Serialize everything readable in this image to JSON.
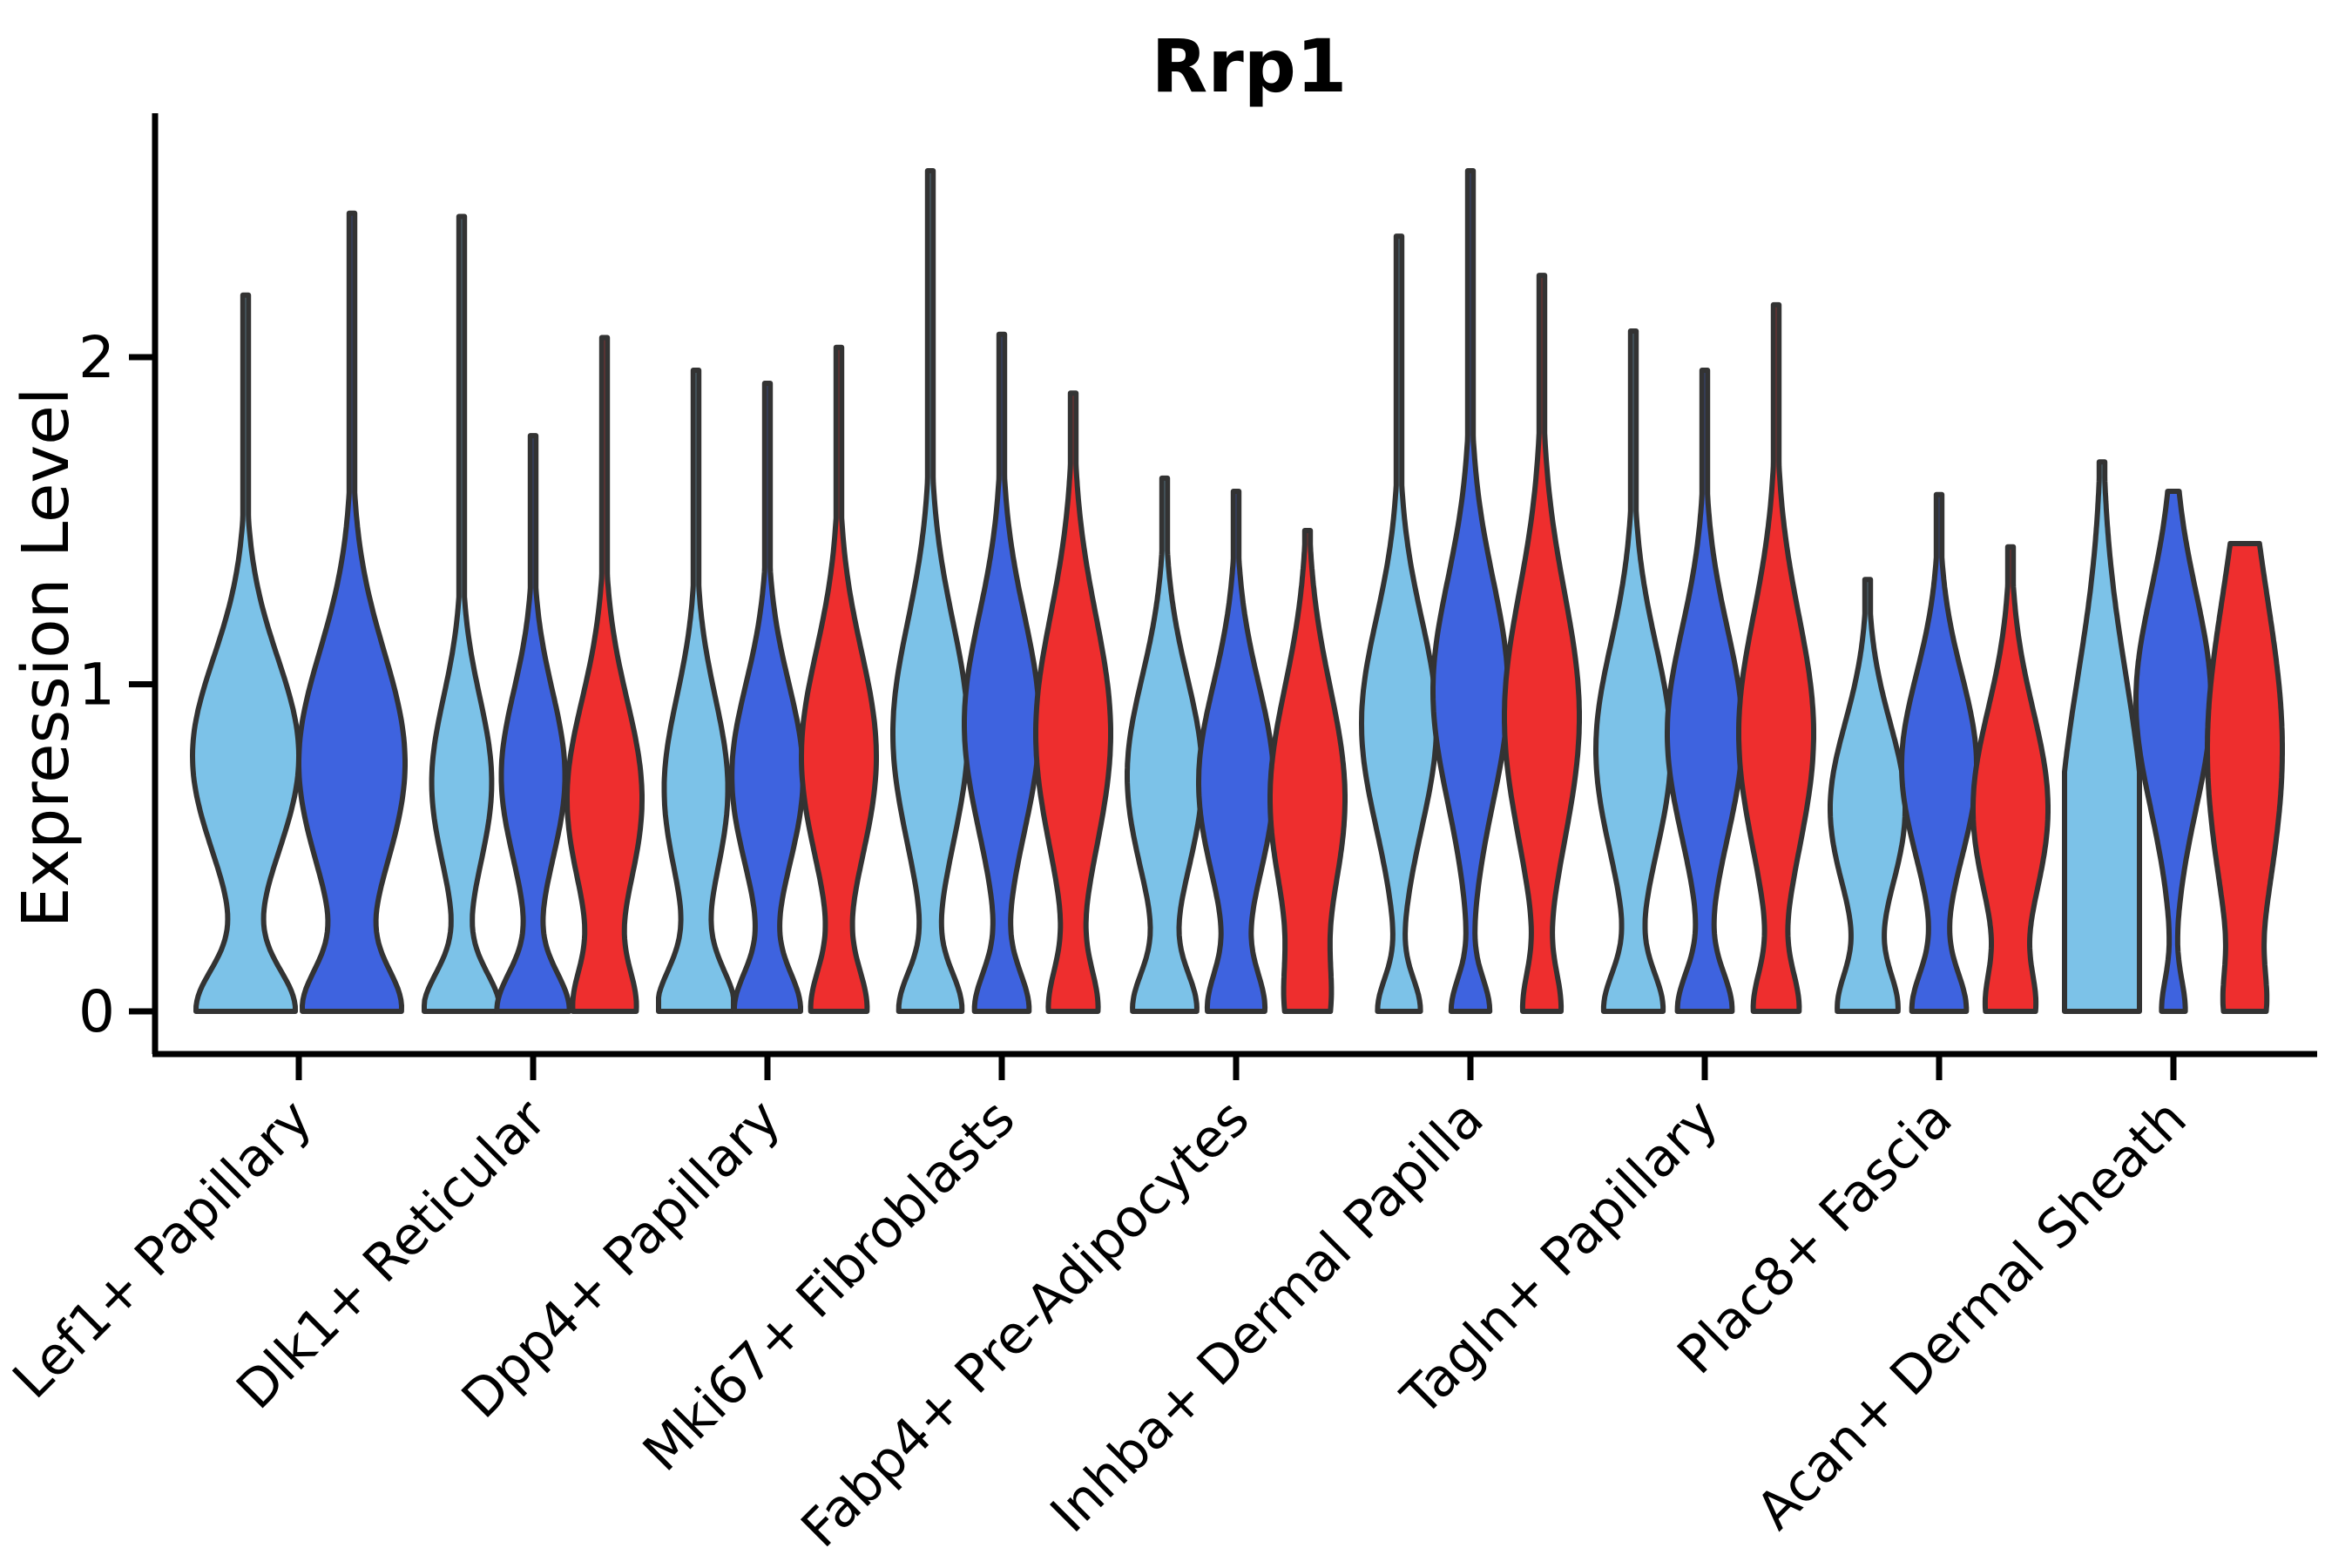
{
  "title": "Rrp1",
  "chart_data": {
    "type": "violin",
    "title": "Rrp1",
    "xlabel": "",
    "ylabel": "Expression Level",
    "ylim": [
      0,
      2.72
    ],
    "yticks": [
      "0",
      "1",
      "2"
    ],
    "grid": false,
    "legend": "none",
    "outline_color": "#333333",
    "background_color": "#ffffff",
    "series": [
      {
        "name": "light_blue",
        "color": "#7CC2E8"
      },
      {
        "name": "royal_blue",
        "color": "#3E63DF"
      },
      {
        "name": "red",
        "color": "#EE2E2E"
      }
    ],
    "categories": [
      "Lef1+ Papillary",
      "Dlk1+ Reticular",
      "Dpp4+ Papillary",
      "Mki67+ Fibroblasts",
      "Fabp4+ Pre-Adipocytes",
      "Inhba+ Dermal Papilla",
      "Tagln+ Papillary",
      "Plac8+ Fascia",
      "Acan+ Dermal Sheath"
    ],
    "groups": [
      {
        "category": "Lef1+ Papillary",
        "violins": [
          {
            "series": "light_blue",
            "max": 2.19,
            "profile": {
              "A0": 0.9,
              "s0": 0.13,
              "mu": 0.78,
              "s1": 0.3,
              "A1": 1.0
            }
          },
          {
            "series": "royal_blue",
            "max": 2.44,
            "profile": {
              "A0": 0.85,
              "s0": 0.13,
              "mu": 0.76,
              "s1": 0.34,
              "A1": 1.0
            }
          }
        ]
      },
      {
        "category": "Dlk1+ Reticular",
        "violins": [
          {
            "series": "light_blue",
            "max": 2.43,
            "profile": {
              "A0": 1.0,
              "s0": 0.12,
              "mu": 0.7,
              "s1": 0.26,
              "A1": 0.8
            }
          },
          {
            "series": "royal_blue",
            "max": 1.76,
            "profile": {
              "A0": 0.95,
              "s0": 0.12,
              "mu": 0.72,
              "s1": 0.26,
              "A1": 0.85
            }
          },
          {
            "series": "red",
            "max": 2.06,
            "profile": {
              "A0": 0.75,
              "s0": 0.13,
              "mu": 0.65,
              "s1": 0.3,
              "A1": 1.0
            }
          }
        ]
      },
      {
        "category": "Dpp4+ Papillary",
        "violins": [
          {
            "series": "light_blue",
            "max": 1.96,
            "profile": {
              "A0": 1.0,
              "s0": 0.13,
              "mu": 0.68,
              "s1": 0.28,
              "A1": 0.85
            }
          },
          {
            "series": "royal_blue",
            "max": 1.92,
            "profile": {
              "A0": 0.85,
              "s0": 0.12,
              "mu": 0.72,
              "s1": 0.28,
              "A1": 0.95
            }
          },
          {
            "series": "red",
            "max": 2.03,
            "profile": {
              "A0": 0.7,
              "s0": 0.13,
              "mu": 0.78,
              "s1": 0.32,
              "A1": 1.0
            }
          }
        ]
      },
      {
        "category": "Mki67+ Fibroblasts",
        "violins": [
          {
            "series": "light_blue",
            "max": 2.57,
            "profile": {
              "A0": 0.8,
              "s0": 0.12,
              "mu": 0.85,
              "s1": 0.34,
              "A1": 1.0
            }
          },
          {
            "series": "royal_blue",
            "max": 2.07,
            "profile": {
              "A0": 0.7,
              "s0": 0.12,
              "mu": 0.88,
              "s1": 0.33,
              "A1": 1.0
            }
          },
          {
            "series": "red",
            "max": 1.89,
            "profile": {
              "A0": 0.6,
              "s0": 0.13,
              "mu": 0.85,
              "s1": 0.36,
              "A1": 1.0
            }
          }
        ]
      },
      {
        "category": "Fabp4+ Pre-Adipocytes",
        "violins": [
          {
            "series": "light_blue",
            "max": 1.63,
            "profile": {
              "A0": 0.8,
              "s0": 0.12,
              "mu": 0.72,
              "s1": 0.3,
              "A1": 1.0
            }
          },
          {
            "series": "royal_blue",
            "max": 1.59,
            "profile": {
              "A0": 0.7,
              "s0": 0.12,
              "mu": 0.7,
              "s1": 0.3,
              "A1": 1.0
            }
          },
          {
            "series": "red",
            "max": 1.47,
            "profile": {
              "A0": 0.45,
              "s0": 0.15,
              "mu": 0.65,
              "s1": 0.34,
              "A1": 1.0
            }
          }
        ]
      },
      {
        "category": "Inhba+ Dermal Papilla",
        "violins": [
          {
            "series": "light_blue",
            "max": 2.37,
            "profile": {
              "A0": 0.55,
              "s0": 0.1,
              "mu": 0.88,
              "s1": 0.32,
              "A1": 1.0
            }
          },
          {
            "series": "royal_blue",
            "max": 2.57,
            "profile": {
              "A0": 0.5,
              "s0": 0.1,
              "mu": 0.98,
              "s1": 0.34,
              "A1": 1.0
            }
          },
          {
            "series": "red",
            "max": 2.25,
            "profile": {
              "A0": 0.45,
              "s0": 0.12,
              "mu": 0.9,
              "s1": 0.38,
              "A1": 1.0
            }
          }
        ]
      },
      {
        "category": "Tagln+ Papillary",
        "violins": [
          {
            "series": "light_blue",
            "max": 2.08,
            "profile": {
              "A0": 0.75,
              "s0": 0.12,
              "mu": 0.8,
              "s1": 0.32,
              "A1": 1.0
            }
          },
          {
            "series": "royal_blue",
            "max": 1.96,
            "profile": {
              "A0": 0.7,
              "s0": 0.12,
              "mu": 0.85,
              "s1": 0.32,
              "A1": 1.0
            }
          },
          {
            "series": "red",
            "max": 2.16,
            "profile": {
              "A0": 0.55,
              "s0": 0.12,
              "mu": 0.85,
              "s1": 0.36,
              "A1": 1.0
            }
          }
        ]
      },
      {
        "category": "Plac8+ Fascia",
        "violins": [
          {
            "series": "light_blue",
            "max": 1.32,
            "profile": {
              "A0": 0.75,
              "s0": 0.12,
              "mu": 0.62,
              "s1": 0.26,
              "A1": 1.0
            }
          },
          {
            "series": "royal_blue",
            "max": 1.58,
            "profile": {
              "A0": 0.7,
              "s0": 0.12,
              "mu": 0.75,
              "s1": 0.28,
              "A1": 1.0
            }
          },
          {
            "series": "red",
            "max": 1.42,
            "profile": {
              "A0": 0.55,
              "s0": 0.12,
              "mu": 0.62,
              "s1": 0.3,
              "A1": 1.0
            }
          }
        ]
      },
      {
        "category": "Acan+ Dermal Sheath",
        "violins": [
          {
            "series": "light_blue",
            "max": 1.68,
            "profile": {
              "A0": 0.85,
              "s0": 0.3,
              "mu": 0.6,
              "s1": 0.45,
              "A1": 1.0
            }
          },
          {
            "series": "royal_blue",
            "max": 1.59,
            "profile": {
              "A0": 0.3,
              "s0": 0.1,
              "mu": 0.95,
              "s1": 0.33,
              "A1": 1.0
            }
          },
          {
            "series": "red",
            "max": 1.43,
            "profile": {
              "A0": 0.35,
              "s0": 0.12,
              "mu": 0.8,
              "s1": 0.46,
              "A1": 1.0
            }
          }
        ]
      }
    ]
  }
}
